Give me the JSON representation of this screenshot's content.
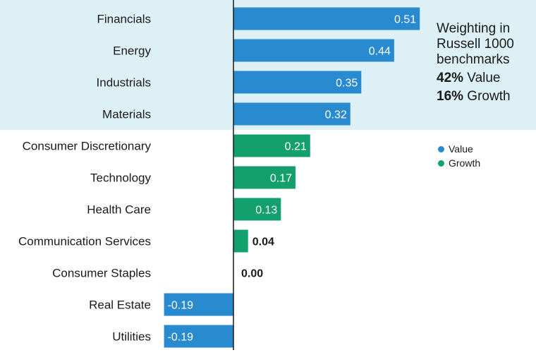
{
  "chart_data": {
    "type": "bar",
    "orientation": "horizontal",
    "categories": [
      "Financials",
      "Energy",
      "Industrials",
      "Materials",
      "Consumer Discretionary",
      "Technology",
      "Health Care",
      "Communication Services",
      "Consumer Staples",
      "Real Estate",
      "Utilities"
    ],
    "values": [
      0.51,
      0.44,
      0.35,
      0.32,
      0.21,
      0.17,
      0.13,
      0.04,
      0.0,
      -0.19,
      -0.19
    ],
    "value_labels": [
      "0.51",
      "0.44",
      "0.35",
      "0.32",
      "0.21",
      "0.17",
      "0.13",
      "0.04",
      "0.00",
      "-0.19",
      "-0.19"
    ],
    "groups": [
      "Value",
      "Value",
      "Value",
      "Value",
      "Growth",
      "Growth",
      "Growth",
      "Growth",
      "Growth",
      "Value",
      "Value"
    ],
    "xlim": [
      -0.19,
      0.51
    ],
    "grid": false,
    "legend": {
      "placement": "right",
      "items": [
        {
          "name": "Value",
          "color": "#2a8ad0"
        },
        {
          "name": "Growth",
          "color": "#14a06e"
        }
      ]
    },
    "highlight_band": {
      "categories": [
        "Financials",
        "Energy",
        "Industrials",
        "Materials"
      ],
      "color": "#dcf0f5"
    }
  },
  "annotation": {
    "title": "Weighting in Russell 1000 benchmarks",
    "line1_value": "42%",
    "line1_label": " Value",
    "line2_value": "16%",
    "line2_label": " Growth"
  },
  "colors": {
    "value": "#2a8ad0",
    "growth": "#14a06e",
    "band": "#dcf0f5",
    "axis": "#1a1a1a"
  }
}
